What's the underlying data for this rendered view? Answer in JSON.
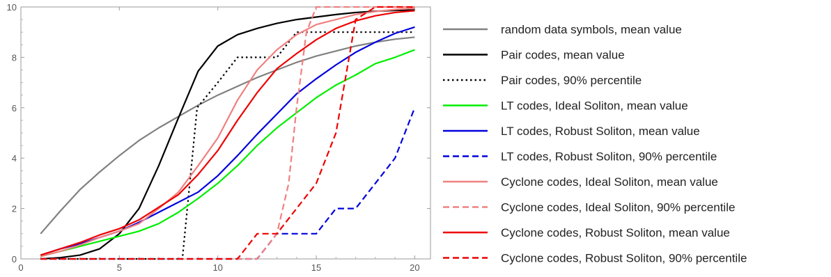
{
  "chart_data": {
    "type": "line",
    "title": "",
    "xlabel": "",
    "ylabel": "",
    "xlim": [
      0,
      20.8
    ],
    "ylim": [
      0,
      10
    ],
    "x_ticks": [
      0,
      5,
      10,
      15,
      20
    ],
    "y_ticks": [
      0,
      2,
      4,
      6,
      8,
      10
    ],
    "grid": false,
    "legend_position": "right",
    "series": [
      {
        "name": "random data symbols, mean value",
        "color": "#808080",
        "dash": "solid",
        "points": [
          [
            1,
            1.0
          ],
          [
            2,
            1.9
          ],
          [
            3,
            2.75
          ],
          [
            4,
            3.45
          ],
          [
            5,
            4.1
          ],
          [
            6,
            4.7
          ],
          [
            7,
            5.2
          ],
          [
            8,
            5.65
          ],
          [
            9,
            6.1
          ],
          [
            10,
            6.5
          ],
          [
            11,
            6.85
          ],
          [
            12,
            7.2
          ],
          [
            13,
            7.5
          ],
          [
            14,
            7.8
          ],
          [
            15,
            8.05
          ],
          [
            16,
            8.25
          ],
          [
            17,
            8.45
          ],
          [
            18,
            8.6
          ],
          [
            19,
            8.72
          ],
          [
            20,
            8.8
          ]
        ]
      },
      {
        "name": "Pair codes, mean value",
        "color": "#000000",
        "dash": "solid",
        "points": [
          [
            1,
            0.0
          ],
          [
            2,
            0.05
          ],
          [
            3,
            0.15
          ],
          [
            4,
            0.4
          ],
          [
            5,
            1.0
          ],
          [
            6,
            2.0
          ],
          [
            7,
            3.7
          ],
          [
            8,
            5.6
          ],
          [
            9,
            7.45
          ],
          [
            10,
            8.45
          ],
          [
            11,
            8.9
          ],
          [
            12,
            9.15
          ],
          [
            13,
            9.35
          ],
          [
            14,
            9.5
          ],
          [
            15,
            9.6
          ],
          [
            16,
            9.7
          ],
          [
            17,
            9.78
          ],
          [
            18,
            9.83
          ],
          [
            19,
            9.86
          ],
          [
            20,
            9.88
          ]
        ]
      },
      {
        "name": "Pair codes, 90% percentile",
        "color": "#000000",
        "dash": "dotted",
        "points": [
          [
            1,
            0
          ],
          [
            8,
            0
          ],
          [
            8.2,
            0
          ],
          [
            8.95,
            6
          ],
          [
            10,
            7
          ],
          [
            11,
            8
          ],
          [
            13,
            8
          ],
          [
            14,
            9
          ],
          [
            20,
            9
          ]
        ]
      },
      {
        "name": "LT codes, Ideal Soliton, mean value",
        "color": "#00ee00",
        "dash": "solid",
        "points": [
          [
            1,
            0.1
          ],
          [
            2,
            0.3
          ],
          [
            3,
            0.5
          ],
          [
            4,
            0.7
          ],
          [
            5,
            0.9
          ],
          [
            6,
            1.1
          ],
          [
            7,
            1.4
          ],
          [
            8,
            1.85
          ],
          [
            9,
            2.4
          ],
          [
            10,
            3.0
          ],
          [
            11,
            3.7
          ],
          [
            12,
            4.5
          ],
          [
            13,
            5.2
          ],
          [
            14,
            5.8
          ],
          [
            15,
            6.4
          ],
          [
            16,
            6.9
          ],
          [
            17,
            7.3
          ],
          [
            18,
            7.75
          ],
          [
            19,
            8.0
          ],
          [
            20,
            8.3
          ]
        ]
      },
      {
        "name": "LT codes, Robust Soliton, mean value",
        "color": "#0000dd",
        "dash": "solid",
        "points": [
          [
            1,
            0.15
          ],
          [
            2,
            0.4
          ],
          [
            3,
            0.6
          ],
          [
            4,
            0.85
          ],
          [
            5,
            1.1
          ],
          [
            6,
            1.45
          ],
          [
            7,
            1.85
          ],
          [
            8,
            2.25
          ],
          [
            9,
            2.65
          ],
          [
            10,
            3.3
          ],
          [
            11,
            4.1
          ],
          [
            12,
            4.95
          ],
          [
            13,
            5.75
          ],
          [
            14,
            6.55
          ],
          [
            15,
            7.15
          ],
          [
            16,
            7.7
          ],
          [
            17,
            8.2
          ],
          [
            18,
            8.6
          ],
          [
            19,
            8.95
          ],
          [
            20,
            9.2
          ]
        ]
      },
      {
        "name": "LT codes, Robust Soliton, 90% percentile",
        "color": "#0000dd",
        "dash": "dashed",
        "points": [
          [
            1,
            0
          ],
          [
            12,
            0
          ],
          [
            13,
            1
          ],
          [
            15,
            1
          ],
          [
            16,
            2
          ],
          [
            17,
            2
          ],
          [
            18,
            3
          ],
          [
            19,
            4
          ],
          [
            20,
            6
          ]
        ]
      },
      {
        "name": "Cyclone codes, Ideal Soliton, mean value",
        "color": "#f08080",
        "dash": "solid",
        "points": [
          [
            1,
            0.1
          ],
          [
            2,
            0.3
          ],
          [
            3,
            0.55
          ],
          [
            4,
            0.85
          ],
          [
            5,
            1.1
          ],
          [
            6,
            1.4
          ],
          [
            7,
            2.0
          ],
          [
            8,
            2.65
          ],
          [
            9,
            3.7
          ],
          [
            10,
            4.8
          ],
          [
            11,
            6.3
          ],
          [
            12,
            7.5
          ],
          [
            13,
            8.3
          ],
          [
            14,
            8.9
          ],
          [
            15,
            9.3
          ],
          [
            16,
            9.5
          ],
          [
            17,
            9.7
          ],
          [
            18,
            9.82
          ],
          [
            19,
            9.9
          ],
          [
            20,
            9.95
          ]
        ]
      },
      {
        "name": "Cyclone codes, Ideal Soliton, 90% percentile",
        "color": "#f08080",
        "dash": "dashed",
        "points": [
          [
            1,
            0
          ],
          [
            12,
            0
          ],
          [
            13,
            1
          ],
          [
            13.6,
            3
          ],
          [
            14,
            6
          ],
          [
            14.5,
            9
          ],
          [
            15,
            10
          ],
          [
            20,
            10
          ]
        ]
      },
      {
        "name": "Cyclone codes, Robust Soliton, mean value",
        "color": "#ee0000",
        "dash": "solid",
        "points": [
          [
            1,
            0.15
          ],
          [
            2,
            0.4
          ],
          [
            3,
            0.65
          ],
          [
            4,
            0.95
          ],
          [
            5,
            1.2
          ],
          [
            6,
            1.55
          ],
          [
            7,
            2.05
          ],
          [
            8,
            2.55
          ],
          [
            9,
            3.35
          ],
          [
            10,
            4.3
          ],
          [
            11,
            5.5
          ],
          [
            12,
            6.6
          ],
          [
            13,
            7.55
          ],
          [
            14,
            8.15
          ],
          [
            15,
            8.7
          ],
          [
            16,
            9.15
          ],
          [
            17,
            9.45
          ],
          [
            18,
            9.65
          ],
          [
            19,
            9.78
          ],
          [
            20,
            9.85
          ]
        ]
      },
      {
        "name": "Cyclone codes, Robust Soliton, 90% percentile",
        "color": "#ee0000",
        "dash": "dashed",
        "points": [
          [
            1,
            0
          ],
          [
            11,
            0
          ],
          [
            12,
            1
          ],
          [
            13,
            1
          ],
          [
            14,
            2
          ],
          [
            15,
            3
          ],
          [
            16,
            5
          ],
          [
            17,
            9.5
          ],
          [
            18,
            10
          ],
          [
            20,
            10
          ]
        ]
      }
    ]
  }
}
